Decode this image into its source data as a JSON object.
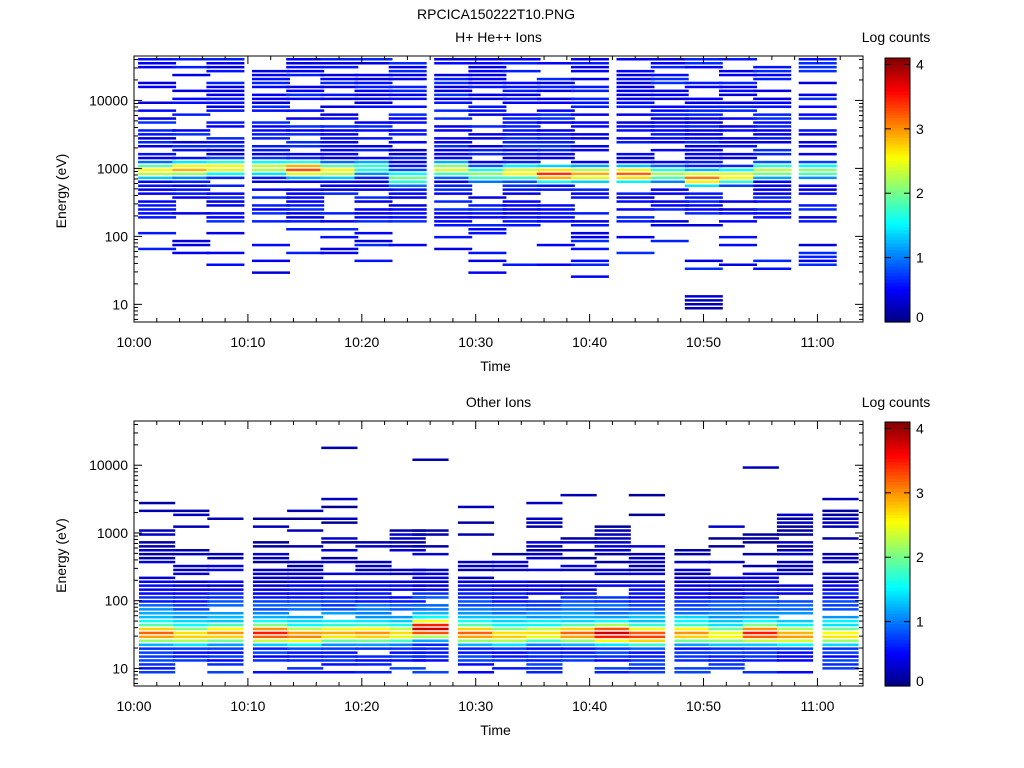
{
  "page_title": "RPCICA150222T10.PNG",
  "chart_data": [
    {
      "type": "heatmap",
      "title": "H+ He++ Ions",
      "xlabel": "Time",
      "ylabel": "Energy (eV)",
      "yscale": "log",
      "ylim": [
        5.5,
        45000
      ],
      "xlim": [
        "10:00",
        "11:04"
      ],
      "x_ticks": [
        "10:00",
        "10:10",
        "10:20",
        "10:30",
        "10:40",
        "10:50",
        "11:00"
      ],
      "y_ticks": [
        "10",
        "100",
        "1000",
        "10000"
      ],
      "colorbar": {
        "label": "Log counts",
        "range": [
          0,
          4.1
        ],
        "ticks": [
          "0",
          "1",
          "2",
          "3",
          "4"
        ]
      },
      "columns": [
        {
          "t": "10:02",
          "peak_eV": 900,
          "peak": 2.6,
          "low_eV": 22,
          "max_eV": 40000
        },
        {
          "t": "10:05",
          "peak_eV": 950,
          "peak": 2.9,
          "low_eV": 35,
          "max_eV": 40000
        },
        {
          "t": "10:08",
          "peak_eV": 1000,
          "peak": 2.6,
          "low_eV": 25,
          "max_eV": 40000
        },
        {
          "t": "10:12",
          "peak_eV": 1000,
          "peak": 2.4,
          "low_eV": 25,
          "max_eV": 40000
        },
        {
          "t": "10:15",
          "peak_eV": 950,
          "peak": 3.3,
          "low_eV": 33,
          "max_eV": 40000
        },
        {
          "t": "10:18",
          "peak_eV": 900,
          "peak": 2.6,
          "low_eV": 33,
          "max_eV": 40000
        },
        {
          "t": "10:21",
          "peak_eV": 1000,
          "peak": 1.8,
          "low_eV": 33,
          "max_eV": 40000
        },
        {
          "t": "10:24",
          "peak_eV": 700,
          "peak": 2.0,
          "low_eV": 30,
          "max_eV": 40000
        },
        {
          "t": "10:28",
          "peak_eV": 950,
          "peak": 2.4,
          "low_eV": 30,
          "max_eV": 40000
        },
        {
          "t": "10:31",
          "peak_eV": 800,
          "peak": 2.1,
          "low_eV": 22,
          "max_eV": 40000
        },
        {
          "t": "10:34",
          "peak_eV": 850,
          "peak": 2.6,
          "low_eV": 30,
          "max_eV": 40000
        },
        {
          "t": "10:37",
          "peak_eV": 800,
          "peak": 3.4,
          "low_eV": 35,
          "max_eV": 40000
        },
        {
          "t": "10:40",
          "peak_eV": 800,
          "peak": 2.9,
          "low_eV": 22,
          "max_eV": 40000
        },
        {
          "t": "10:44",
          "peak_eV": 800,
          "peak": 3.2,
          "low_eV": 33,
          "max_eV": 40000
        },
        {
          "t": "10:47",
          "peak_eV": 800,
          "peak": 2.2,
          "low_eV": 40,
          "max_eV": 40000
        },
        {
          "t": "10:50",
          "peak_eV": 700,
          "peak": 3.1,
          "low_eV": 8,
          "max_eV": 40000
        },
        {
          "t": "10:53",
          "peak_eV": 750,
          "peak": 2.6,
          "low_eV": 33,
          "max_eV": 40000
        },
        {
          "t": "10:56",
          "peak_eV": 900,
          "peak": 2.3,
          "low_eV": 20,
          "max_eV": 40000
        },
        {
          "t": "11:00",
          "peak_eV": 900,
          "peak": 2.1,
          "low_eV": 30,
          "max_eV": 40000
        }
      ]
    },
    {
      "type": "heatmap",
      "title": "Other Ions",
      "xlabel": "Time",
      "ylabel": "Energy (eV)",
      "yscale": "log",
      "ylim": [
        5.5,
        45000
      ],
      "xlim": [
        "10:00",
        "11:04"
      ],
      "x_ticks": [
        "10:00",
        "10:10",
        "10:20",
        "10:30",
        "10:40",
        "10:50",
        "11:00"
      ],
      "y_ticks": [
        "10",
        "100",
        "1000",
        "10000"
      ],
      "colorbar": {
        "label": "Log counts",
        "range": [
          0,
          4.1
        ],
        "ticks": [
          "0",
          "1",
          "2",
          "3",
          "4"
        ]
      },
      "columns": [
        {
          "t": "10:02",
          "peak_eV": 32,
          "peak": 3.2,
          "top_eV": 4000
        },
        {
          "t": "10:05",
          "peak_eV": 30,
          "peak": 2.8,
          "top_eV": 2200
        },
        {
          "t": "10:08",
          "peak_eV": 32,
          "peak": 3.0,
          "top_eV": 2500
        },
        {
          "t": "10:12",
          "peak_eV": 32,
          "peak": 3.5,
          "top_eV": 2200
        },
        {
          "t": "10:15",
          "peak_eV": 30,
          "peak": 3.1,
          "top_eV": 2200
        },
        {
          "t": "10:18",
          "peak_eV": 32,
          "peak": 2.9,
          "top_eV": 4500
        },
        {
          "t": "10:21",
          "peak_eV": 32,
          "peak": 3.0,
          "top_eV": 800
        },
        {
          "t": "10:24",
          "peak_eV": 32,
          "peak": 2.7,
          "top_eV": 1200
        },
        {
          "t": "10:26",
          "peak_eV": 38,
          "peak": 3.8,
          "top_eV": 1100
        },
        {
          "t": "10:30",
          "peak_eV": 32,
          "peak": 3.2,
          "top_eV": 2500
        },
        {
          "t": "10:33",
          "peak_eV": 30,
          "peak": 2.8,
          "top_eV": 600
        },
        {
          "t": "10:36",
          "peak_eV": 32,
          "peak": 2.7,
          "top_eV": 2800
        },
        {
          "t": "10:39",
          "peak_eV": 32,
          "peak": 3.2,
          "top_eV": 900
        },
        {
          "t": "10:42",
          "peak_eV": 32,
          "peak": 3.8,
          "top_eV": 1500
        },
        {
          "t": "10:45",
          "peak_eV": 30,
          "peak": 3.4,
          "top_eV": 900
        },
        {
          "t": "10:49",
          "peak_eV": 32,
          "peak": 3.0,
          "top_eV": 1400
        },
        {
          "t": "10:52",
          "peak_eV": 30,
          "peak": 2.6,
          "top_eV": 900
        },
        {
          "t": "10:55",
          "peak_eV": 32,
          "peak": 3.5,
          "top_eV": 1000
        },
        {
          "t": "10:58",
          "peak_eV": 30,
          "peak": 3.0,
          "top_eV": 2000
        },
        {
          "t": "11:02",
          "peak_eV": 30,
          "peak": 2.7,
          "top_eV": 2500
        }
      ]
    }
  ]
}
